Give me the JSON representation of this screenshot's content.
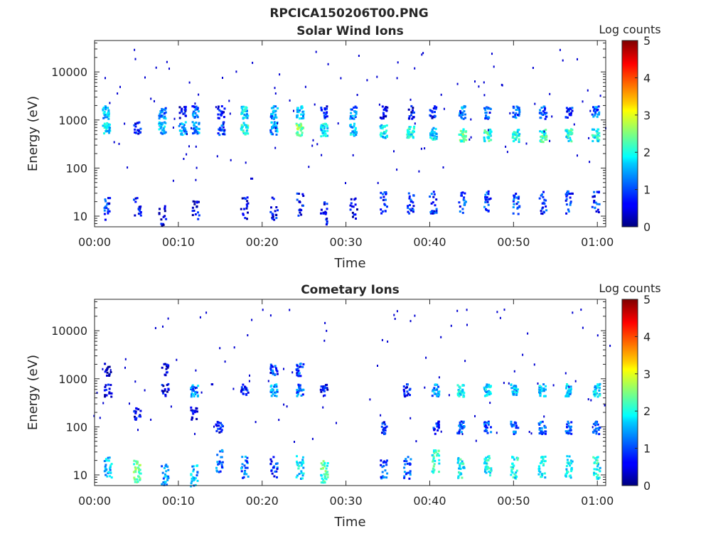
{
  "title": "RPCICA150206T00.PNG",
  "chart_data": [
    {
      "type": "heatmap",
      "title": "Solar Wind Ions",
      "xlabel": "Time",
      "ylabel": "Energy (eV)",
      "x_range": [
        "00:00",
        "01:01"
      ],
      "x_ticks": [
        "00:00",
        "00:10",
        "00:20",
        "00:30",
        "00:40",
        "00:50",
        "01:00"
      ],
      "y_scale": "log",
      "y_range": [
        6,
        45000
      ],
      "y_ticks": [
        "10",
        "100",
        "1000",
        "10000"
      ],
      "colorbar": {
        "label": "Log counts",
        "min": 0,
        "max": 5,
        "ticks": [
          "0",
          "1",
          "2",
          "3",
          "4",
          "5"
        ],
        "colormap": "jet"
      },
      "columns": [
        {
          "t": 1.3,
          "cells": [
            [
              700,
              1.9
            ],
            [
              1500,
              1.6
            ],
            [
              15,
              0.9
            ]
          ]
        },
        {
          "t": 5.0,
          "cells": [
            [
              700,
              0.8
            ],
            [
              15,
              0.6
            ]
          ]
        },
        {
          "t": 8.0,
          "cells": [
            [
              700,
              1.6
            ],
            [
              1500,
              1.4
            ],
            [
              10,
              0.5
            ]
          ]
        },
        {
          "t": 10.4,
          "cells": [
            [
              700,
              1.4
            ],
            [
              1500,
              0.6
            ]
          ]
        },
        {
          "t": 12.0,
          "cells": [
            [
              700,
              1.5
            ],
            [
              1500,
              1.2
            ],
            [
              15,
              0.6
            ]
          ]
        },
        {
          "t": 15.0,
          "cells": [
            [
              700,
              1.0
            ],
            [
              1500,
              0.7
            ]
          ]
        },
        {
          "t": 17.8,
          "cells": [
            [
              700,
              2.1
            ],
            [
              1500,
              1.8
            ],
            [
              15,
              0.6
            ]
          ]
        },
        {
          "t": 21.3,
          "cells": [
            [
              700,
              1.5
            ],
            [
              1500,
              1.5
            ],
            [
              15,
              0.7
            ]
          ]
        },
        {
          "t": 24.4,
          "cells": [
            [
              650,
              2.6
            ],
            [
              1500,
              1.7
            ],
            [
              18,
              0.7
            ]
          ]
        },
        {
          "t": 27.3,
          "cells": [
            [
              650,
              1.9
            ],
            [
              1500,
              0.8
            ],
            [
              12,
              0.8
            ]
          ]
        },
        {
          "t": 30.8,
          "cells": [
            [
              650,
              1.7
            ],
            [
              1500,
              1.3
            ],
            [
              15,
              0.5
            ]
          ]
        },
        {
          "t": 34.4,
          "cells": [
            [
              600,
              1.8
            ],
            [
              1500,
              0.8
            ],
            [
              20,
              0.8
            ]
          ]
        },
        {
          "t": 37.6,
          "cells": [
            [
              600,
              2.0
            ],
            [
              1500,
              0.6
            ],
            [
              20,
              1.0
            ]
          ]
        },
        {
          "t": 40.3,
          "cells": [
            [
              550,
              1.8
            ],
            [
              1500,
              0.7
            ],
            [
              20,
              1.0
            ]
          ]
        },
        {
          "t": 43.8,
          "cells": [
            [
              500,
              2.4
            ],
            [
              1500,
              1.3
            ],
            [
              20,
              1.0
            ]
          ]
        },
        {
          "t": 46.8,
          "cells": [
            [
              500,
              2.2
            ],
            [
              1500,
              1.0
            ],
            [
              20,
              1.0
            ]
          ]
        },
        {
          "t": 50.2,
          "cells": [
            [
              500,
              2.0
            ],
            [
              1500,
              1.2
            ],
            [
              20,
              1.0
            ]
          ]
        },
        {
          "t": 53.4,
          "cells": [
            [
              500,
              2.2
            ],
            [
              1500,
              1.1
            ],
            [
              20,
              0.9
            ]
          ]
        },
        {
          "t": 56.5,
          "cells": [
            [
              500,
              2.1
            ],
            [
              1500,
              1.0
            ],
            [
              20,
              1.0
            ]
          ]
        },
        {
          "t": 59.7,
          "cells": [
            [
              500,
              2.0
            ],
            [
              1500,
              1.2
            ],
            [
              20,
              0.9
            ]
          ]
        }
      ]
    },
    {
      "type": "heatmap",
      "title": "Cometary Ions",
      "xlabel": "Time",
      "ylabel": "Energy (eV)",
      "x_range": [
        "00:00",
        "01:01"
      ],
      "x_ticks": [
        "00:00",
        "00:10",
        "00:20",
        "00:30",
        "00:40",
        "00:50",
        "01:00"
      ],
      "y_scale": "log",
      "y_range": [
        6,
        45000
      ],
      "y_ticks": [
        "10",
        "100",
        "1000",
        "10000"
      ],
      "colorbar": {
        "label": "Log counts",
        "min": 0,
        "max": 5,
        "ticks": [
          "0",
          "1",
          "2",
          "3",
          "4",
          "5"
        ],
        "colormap": "jet"
      },
      "columns": [
        {
          "t": 1.5,
          "cells": [
            [
              15,
              1.6
            ],
            [
              600,
              0.6
            ],
            [
              1600,
              0.5
            ]
          ]
        },
        {
          "t": 5.0,
          "cells": [
            [
              12,
              2.5
            ],
            [
              200,
              0.6
            ]
          ]
        },
        {
          "t": 8.3,
          "cells": [
            [
              10,
              1.4
            ],
            [
              600,
              0.6
            ],
            [
              1600,
              0.5
            ]
          ]
        },
        {
          "t": 11.8,
          "cells": [
            [
              10,
              1.6
            ],
            [
              600,
              1.4
            ],
            [
              200,
              0.5
            ]
          ]
        },
        {
          "t": 14.8,
          "cells": [
            [
              20,
              1.2
            ],
            [
              100,
              0.7
            ]
          ]
        },
        {
          "t": 17.8,
          "cells": [
            [
              15,
              1.3
            ],
            [
              600,
              0.8
            ]
          ]
        },
        {
          "t": 21.3,
          "cells": [
            [
              15,
              1.0
            ],
            [
              600,
              1.5
            ],
            [
              1600,
              1.0
            ]
          ]
        },
        {
          "t": 24.4,
          "cells": [
            [
              15,
              1.8
            ],
            [
              600,
              1.2
            ],
            [
              1600,
              1.0
            ]
          ]
        },
        {
          "t": 27.3,
          "cells": [
            [
              12,
              2.3
            ],
            [
              600,
              0.7
            ]
          ]
        },
        {
          "t": 34.4,
          "cells": [
            [
              15,
              1.0
            ],
            [
              100,
              0.8
            ]
          ]
        },
        {
          "t": 37.2,
          "cells": [
            [
              15,
              1.1
            ],
            [
              600,
              0.8
            ]
          ]
        },
        {
          "t": 40.6,
          "cells": [
            [
              20,
              2.1
            ],
            [
              100,
              1.0
            ],
            [
              600,
              1.4
            ]
          ]
        },
        {
          "t": 43.6,
          "cells": [
            [
              15,
              2.0
            ],
            [
              100,
              1.1
            ],
            [
              600,
              1.9
            ]
          ]
        },
        {
          "t": 46.8,
          "cells": [
            [
              15,
              2.0
            ],
            [
              100,
              1.1
            ],
            [
              600,
              1.8
            ]
          ]
        },
        {
          "t": 50.0,
          "cells": [
            [
              15,
              2.0
            ],
            [
              100,
              1.2
            ],
            [
              600,
              1.7
            ]
          ]
        },
        {
          "t": 53.3,
          "cells": [
            [
              15,
              1.9
            ],
            [
              100,
              1.2
            ],
            [
              600,
              1.8
            ]
          ]
        },
        {
          "t": 56.5,
          "cells": [
            [
              15,
              1.8
            ],
            [
              100,
              1.1
            ],
            [
              600,
              1.7
            ]
          ]
        },
        {
          "t": 59.8,
          "cells": [
            [
              15,
              2.0
            ],
            [
              100,
              1.0
            ],
            [
              600,
              1.8
            ]
          ]
        }
      ]
    }
  ]
}
